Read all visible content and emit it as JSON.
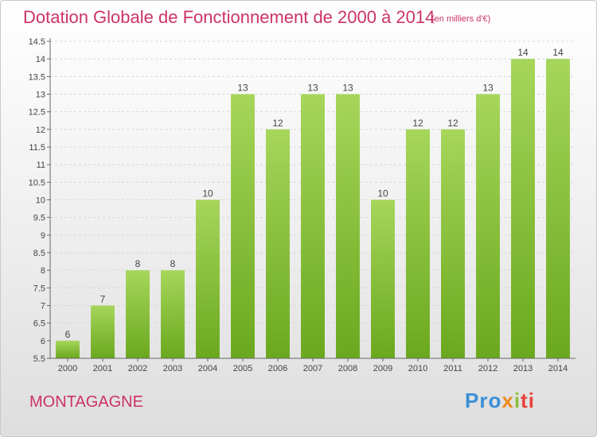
{
  "title": "Dotation Globale de Fonctionnement de 2000 à 2014",
  "unit": "(en milliers d'€)",
  "commune": "MONTAGAGNE",
  "logo": {
    "p1": "Pro",
    "p2": "x",
    "p3": "i",
    "p4": "ti"
  },
  "colors": {
    "title": "#cc3366",
    "bar_light": "#a6d65a",
    "bar_dark": "#6aa81e",
    "grid": "#d8d8d8",
    "axis": "#666666"
  },
  "chart_data": {
    "type": "bar",
    "title": "Dotation Globale de Fonctionnement de 2000 à 2014",
    "categories": [
      "2000",
      "2001",
      "2002",
      "2003",
      "2004",
      "2005",
      "2006",
      "2007",
      "2008",
      "2009",
      "2010",
      "2011",
      "2012",
      "2013",
      "2014"
    ],
    "values": [
      6,
      7,
      8,
      8,
      10,
      13,
      12,
      13,
      13,
      10,
      12,
      12,
      13,
      14,
      14
    ],
    "ylim": [
      5.5,
      14.5
    ],
    "yticks": [
      "5.5",
      "6",
      "6.5",
      "7",
      "7.5",
      "8",
      "8.5",
      "9",
      "9.5",
      "10",
      "10.5",
      "11",
      "11.5",
      "12",
      "12.5",
      "13",
      "13.5",
      "14",
      "14.5"
    ],
    "xlabel": "",
    "ylabel": "",
    "grid": true
  }
}
